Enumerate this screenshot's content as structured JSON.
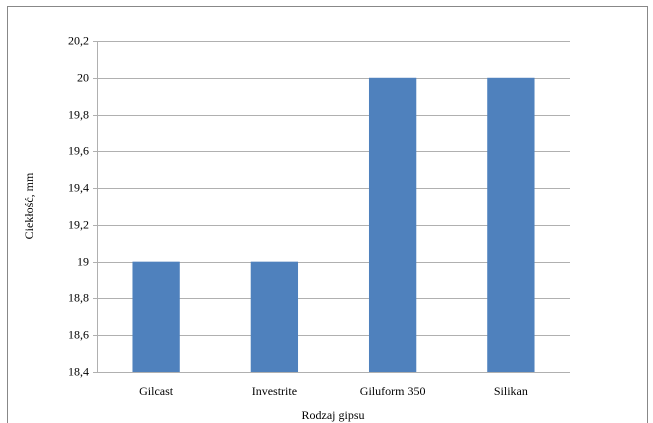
{
  "chart_data": {
    "type": "bar",
    "x_label": "Rodzaj gipsu",
    "y_label": "Ciekłość, mm",
    "categories": [
      "Gilcast",
      "Investrite",
      "Giluform 350",
      "Silikan"
    ],
    "values": [
      19,
      19,
      20,
      20
    ],
    "color": "#4f81bd",
    "ylim": [
      18.4,
      20.2
    ],
    "yticks": [
      {
        "value": 18.4,
        "label": "18,4"
      },
      {
        "value": 18.6,
        "label": "18,6"
      },
      {
        "value": 18.8,
        "label": "18,8"
      },
      19,
      {
        "value": 19.2,
        "label": "19,2"
      },
      {
        "value": 19.4,
        "label": "19,4"
      },
      {
        "value": 19.6,
        "label": "19,6"
      },
      {
        "value": 19.8,
        "label": "19,8"
      },
      20,
      {
        "value": 20.2,
        "label": "20,2"
      }
    ],
    "grid": true
  }
}
